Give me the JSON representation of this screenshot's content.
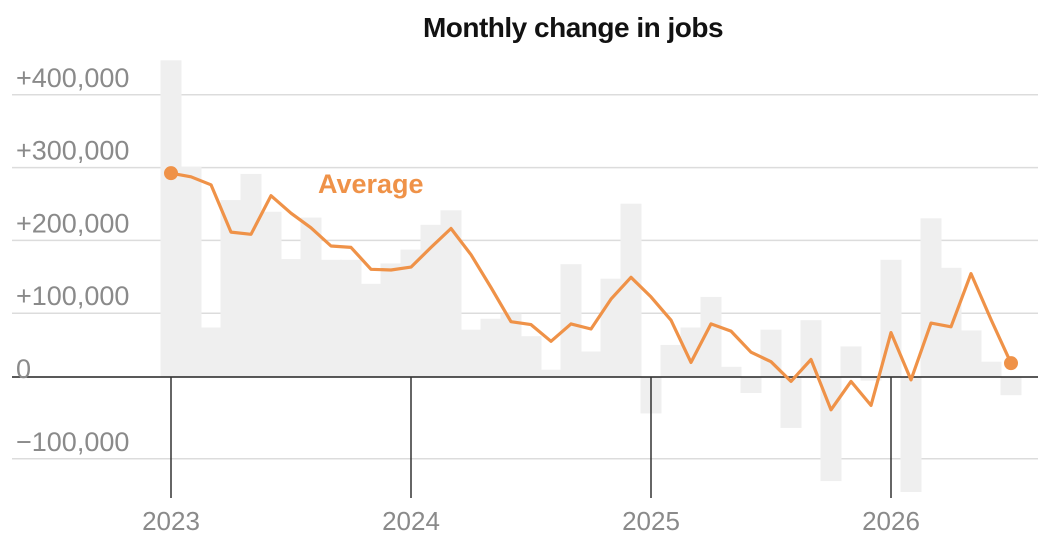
{
  "chart_data": {
    "type": "bar",
    "title": "Monthly change in jobs",
    "y_ticks": [
      {
        "value": 400000,
        "label": "+400,000"
      },
      {
        "value": 300000,
        "label": "+300,000"
      },
      {
        "value": 200000,
        "label": "+200,000"
      },
      {
        "value": 100000,
        "label": "+100,000"
      },
      {
        "value": 0,
        "label": "0"
      },
      {
        "value": -100000,
        "label": "−100,000"
      }
    ],
    "x_ticks": [
      {
        "index": 0,
        "label": "2023"
      },
      {
        "index": 12,
        "label": "2024"
      },
      {
        "index": 24,
        "label": "2025"
      },
      {
        "index": 36,
        "label": "2026"
      }
    ],
    "ylim": [
      -160000,
      440000
    ],
    "grid": true,
    "series": [
      {
        "type": "bar",
        "color": "#efefef",
        "values": [
          435000,
          289000,
          68000,
          243000,
          279000,
          227000,
          162000,
          219000,
          161000,
          161000,
          128000,
          156000,
          175000,
          209000,
          229000,
          65000,
          80000,
          87000,
          56000,
          10000,
          155000,
          35000,
          135000,
          238000,
          -50000,
          44000,
          68000,
          110000,
          14000,
          -22000,
          65000,
          -70000,
          78000,
          -143000,
          42000,
          -5000,
          161000,
          -158000,
          218000,
          150000,
          64000,
          21000,
          -25000
        ]
      },
      {
        "type": "line",
        "name": "Average",
        "color": "#ef9248",
        "values": [
          280000,
          275000,
          264000,
          199000,
          196000,
          249000,
          225000,
          205000,
          180000,
          178000,
          148000,
          147000,
          151000,
          178000,
          204000,
          168000,
          123000,
          76000,
          72000,
          49000,
          73000,
          66000,
          107000,
          137000,
          110000,
          78000,
          20000,
          73000,
          63000,
          34000,
          21000,
          -6000,
          24000,
          -45000,
          -6000,
          -39000,
          61000,
          -4000,
          74000,
          69000,
          142000,
          79000,
          19000
        ]
      }
    ]
  }
}
